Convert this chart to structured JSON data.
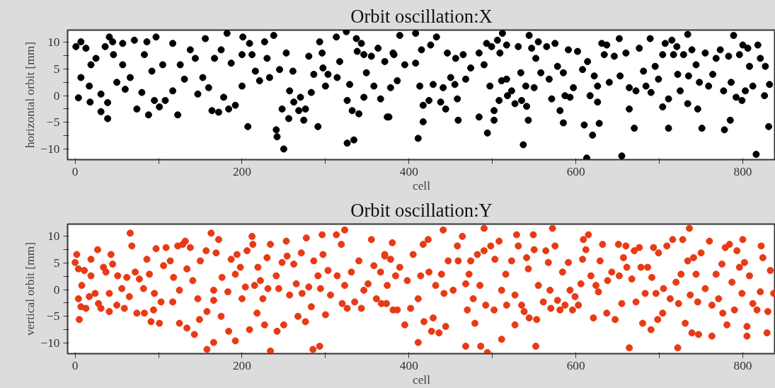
{
  "chart_data": [
    {
      "type": "scatter",
      "title": "Orbit oscillation:X",
      "xlabel": "cell",
      "ylabel": "horizontal orbit [mm]",
      "xlim": [
        -9,
        839
      ],
      "ylim": [
        -12,
        12.3
      ],
      "xticks": [
        0,
        {
          "value": 100,
          "label": null
        },
        200,
        {
          "value": 300,
          "label": null
        },
        400,
        {
          "value": 500,
          "label": null
        },
        600,
        {
          "value": 700,
          "label": null
        },
        800
      ],
      "yticks": [
        -10,
        {
          "value": -7.5,
          "label": null
        },
        -5,
        {
          "value": -2.5,
          "label": null
        },
        0,
        {
          "value": 2.5,
          "label": null
        },
        5,
        {
          "value": 7.5,
          "label": null
        },
        10
      ],
      "grid": false,
      "marker": "circle",
      "series": [
        {
          "color": "#000000",
          "x": [
            1,
            7,
            13,
            4,
            7,
            17,
            19,
            18,
            25,
            31,
            31,
            39,
            39,
            41,
            36,
            45,
            46,
            50,
            57,
            57,
            60,
            71,
            66,
            74,
            80,
            88,
            83,
            86,
            92,
            97,
            95,
            101,
            105,
            108,
            117,
            117,
            123,
            126,
            131,
            138,
            147,
            144,
            153,
            156,
            160,
            164,
            167,
            172,
            175,
            178,
            182,
            184,
            187,
            192,
            200,
            201,
            200,
            207,
            209,
            212,
            216,
            221,
            227,
            230,
            238,
            233,
            241,
            242,
            250,
            245,
            248,
            253,
            256,
            257,
            261,
            262,
            270,
            268,
            274,
            276,
            280,
            283,
            286,
            291,
            293,
            296,
            297,
            300,
            303,
            313,
            314,
            317,
            325,
            326,
            334,
            326,
            329,
            332,
            337,
            338,
            340,
            343,
            346,
            349,
            346,
            355,
            358,
            363,
            366,
            374,
            371,
            378,
            381,
            376,
            382,
            389,
            386,
            395,
            408,
            408,
            411,
            413,
            415,
            417,
            417,
            424,
            426,
            429,
            433,
            438,
            441,
            444,
            446,
            450,
            455,
            458,
            459,
            456,
            465,
            468,
            474,
            484,
            484,
            490,
            493,
            494,
            497,
            499,
            502,
            502,
            506,
            509,
            512,
            511,
            517,
            517,
            508,
            518,
            523,
            527,
            531,
            535,
            534,
            537,
            540,
            543,
            541,
            544,
            547,
            550,
            552,
            555,
            558,
            565,
            568,
            571,
            575,
            578,
            581,
            585,
            585,
            587,
            591,
            593,
            597,
            602,
            608,
            610,
            613,
            614,
            617,
            620,
            622,
            626,
            628,
            626,
            631,
            634,
            637,
            640,
            646,
            652,
            655,
            653,
            660,
            664,
            664,
            670,
            672,
            676,
            681,
            684,
            689,
            690,
            695,
            699,
            704,
            704,
            707,
            711,
            711,
            715,
            717,
            721,
            722,
            725,
            729,
            734,
            734,
            735,
            739,
            744,
            746,
            748,
            751,
            755,
            759,
            764,
            768,
            773,
            777,
            778,
            785,
            783,
            786,
            789,
            792,
            796,
            799,
            800,
            803,
            806,
            808,
            812,
            816,
            818,
            821,
            826,
            827,
            831,
            832
          ],
          "values": [
            9.2,
            10.1,
            8.9,
            -0.4,
            3.4,
            1.8,
            5.8,
            -1.2,
            7,
            -3,
            0.3,
            -4.3,
            -1.3,
            11,
            9.2,
            10.1,
            7.7,
            2.5,
            5.8,
            9.8,
            1.2,
            10.4,
            3.4,
            -2.5,
            0.6,
            -3.6,
            7.7,
            10.1,
            4.6,
            11,
            -0.9,
            -2.1,
            5.8,
            -0.9,
            9.8,
            0.9,
            -3.6,
            5.8,
            3.1,
            8.6,
            0.3,
            7,
            3.4,
            10.7,
            1.5,
            -2.8,
            7,
            -3.1,
            8.6,
            -0.3,
            11.7,
            -2.5,
            6.1,
            -1.8,
            7.7,
            11,
            1.8,
            -5.8,
            9.8,
            7.7,
            4.6,
            2.8,
            10.1,
            7,
            11.3,
            3.4,
            -6.4,
            -7.7,
            -10,
            4.9,
            -2.5,
            8,
            -4.3,
            0.9,
            4.6,
            -1.2,
            -0.3,
            -2.8,
            -4.6,
            -2.5,
            7.4,
            0.6,
            4,
            -5.8,
            10.1,
            8,
            5.2,
            1.8,
            4,
            11,
            3.4,
            6.4,
            12,
            -8.9,
            -8.3,
            -0.9,
            2.1,
            -2.8,
            10.7,
            8.3,
            -3.4,
            9.8,
            7.7,
            4.3,
            -0.3,
            7.4,
            1.8,
            8.9,
            -0.6,
            -4,
            6.4,
            1.5,
            8,
            -4,
            7.7,
            11.3,
            2.8,
            5.8,
            11.7,
            6.1,
            -8,
            1.8,
            8.6,
            -4.9,
            -1.8,
            -0.9,
            9.5,
            2.1,
            11,
            -1.2,
            1.5,
            -2.5,
            8,
            3.4,
            2.1,
            -0.6,
            -4.6,
            7,
            7.7,
            3.1,
            5.2,
            -4,
            8,
            5.8,
            9.8,
            -7,
            1.8,
            9.2,
            -4.6,
            -2.8,
            10.4,
            8,
            11.7,
            2.8,
            9.5,
            3.1,
            -0.9,
            0,
            0.9,
            -1.5,
            9.2,
            -0.9,
            4.3,
            -9.2,
            1.8,
            -4.6,
            -2,
            11.3,
            8.9,
            1.5,
            7,
            10.1,
            4.3,
            9.2,
            3.1,
            -0.6,
            9.8,
            5.5,
            -2.8,
            4.3,
            -5.1,
            0,
            8.6,
            -0.3,
            1.5,
            8.3,
            4.9,
            -5.5,
            -11.7,
            6.4,
            0,
            -7.4,
            3.7,
            -1.2,
            -5.2,
            1.8,
            9.8,
            7.7,
            9.5,
            2.5,
            7.4,
            10.7,
            -11.3,
            3.7,
            8,
            -2.5,
            1.5,
            -6.1,
            0.9,
            8.9,
            4.6,
            1.8,
            10.7,
            0.6,
            5.5,
            3.1,
            7.7,
            -2.1,
            9.8,
            -6.1,
            -0.6,
            10.4,
            7.7,
            9.2,
            4,
            0.9,
            7.7,
            11.5,
            -1.5,
            3.7,
            8.6,
            5.8,
            -2.5,
            2.5,
            -6.1,
            8,
            1.8,
            4,
            7,
            8.6,
            0.9,
            -6.4,
            -4.6,
            7.4,
            2.5,
            11.3,
            -0.3,
            7.7,
            -0.9,
            9.5,
            0.9,
            8.9,
            5.5,
            1.8,
            -11,
            9.5,
            7,
            0,
            5.5,
            -5.8,
            2.1
          ]
        }
      ]
    },
    {
      "type": "scatter",
      "title": "Orbit oscillation:Y",
      "xlabel": "cell",
      "ylabel": "vertical orbit [mm]",
      "xlim": [
        -9,
        839
      ],
      "ylim": [
        -12,
        12.3
      ],
      "xticks": [
        0,
        {
          "value": 100,
          "label": null
        },
        200,
        {
          "value": 300,
          "label": null
        },
        400,
        {
          "value": 500,
          "label": null
        },
        600,
        {
          "value": 700,
          "label": null
        },
        800
      ],
      "yticks": [
        -10,
        {
          "value": -7.5,
          "label": null
        },
        -5,
        {
          "value": -2.5,
          "label": null
        },
        0,
        {
          "value": 2.5,
          "label": null
        },
        5,
        {
          "value": 7.5,
          "label": null
        },
        10
      ],
      "grid": false,
      "marker": "circle",
      "series": [
        {
          "color": "#e83a14",
          "x": [
            2,
            0,
            4,
            5,
            4,
            7,
            8,
            11,
            13,
            17,
            19,
            19,
            24,
            27,
            28,
            31,
            34,
            37,
            41,
            41,
            43,
            45,
            50,
            51,
            56,
            59,
            62,
            65,
            66,
            68,
            72,
            74,
            77,
            82,
            83,
            86,
            89,
            91,
            94,
            95,
            97,
            101,
            103,
            106,
            109,
            114,
            117,
            118,
            125,
            125,
            123,
            129,
            134,
            132,
            134,
            138,
            143,
            141,
            147,
            149,
            150,
            157,
            158,
            158,
            163,
            166,
            166,
            166,
            169,
            172,
            175,
            176,
            183,
            184,
            187,
            192,
            192,
            194,
            198,
            200,
            204,
            206,
            209,
            212,
            213,
            215,
            219,
            218,
            222,
            225,
            227,
            230,
            231,
            234,
            234,
            241,
            242,
            244,
            248,
            250,
            253,
            254,
            257,
            262,
            265,
            267,
            271,
            272,
            276,
            277,
            280,
            283,
            285,
            286,
            291,
            293,
            294,
            296,
            297,
            300,
            303,
            306,
            313,
            314,
            319,
            320,
            323,
            323,
            326,
            331,
            335,
            340,
            343,
            346,
            351,
            355,
            358,
            361,
            366,
            367,
            371,
            374,
            378,
            381,
            371,
            373,
            380,
            384,
            386,
            389,
            395,
            398,
            402,
            405,
            411,
            411,
            414,
            417,
            418,
            423,
            424,
            427,
            429,
            432,
            436,
            439,
            441,
            442,
            444,
            447,
            453,
            458,
            459,
            464,
            468,
            468,
            470,
            472,
            474,
            477,
            479,
            482,
            485,
            486,
            490,
            490,
            492,
            494,
            498,
            502,
            503,
            508,
            511,
            511,
            516,
            517,
            523,
            527,
            527,
            529,
            531,
            535,
            538,
            541,
            543,
            544,
            549,
            550,
            552,
            553,
            555,
            561,
            564,
            567,
            569,
            570,
            572,
            575,
            578,
            581,
            584,
            587,
            591,
            593,
            596,
            599,
            603,
            606,
            608,
            609,
            612,
            615,
            618,
            621,
            624,
            627,
            629,
            632,
            637,
            638,
            643,
            647,
            651,
            652,
            655,
            657,
            660,
            661,
            664,
            667,
            670,
            672,
            676,
            678,
            680,
            683,
            686,
            690,
            691,
            693,
            696,
            698,
            699,
            704,
            705,
            709,
            713,
            716,
            720,
            722,
            723,
            726,
            728,
            731,
            734,
            736,
            737,
            739,
            741,
            744,
            746,
            747,
            750,
            755,
            760,
            763,
            763,
            768,
            771,
            775,
            776,
            779,
            781,
            784,
            787,
            790,
            793,
            796,
            799,
            800,
            802,
            805,
            805,
            808,
            812,
            817,
            821,
            822,
            824,
            829,
            830,
            833,
            837
          ],
          "values": [
            6.6,
            5.1,
            3.9,
            -5.6,
            -1.7,
            -3.2,
            0.8,
            3.6,
            -3.5,
            -1.3,
            5.7,
            2.6,
            -0.7,
            7.5,
            -2.6,
            -3.5,
            4.2,
            3.3,
            -4.1,
            -0.7,
            6.6,
            4.8,
            -2.9,
            2.6,
            0.2,
            -3.5,
            2.3,
            -1.3,
            10.6,
            8.2,
            3.3,
            -4.4,
            2,
            0.2,
            -4.4,
            5.7,
            2.9,
            -6,
            -3.8,
            -0.7,
            7.7,
            -6.3,
            -2.3,
            4.5,
            7.9,
            5.4,
            -2.3,
            2.3,
            -6.3,
            -0.1,
            8.2,
            8.5,
            -7.2,
            9.1,
            3.9,
            7.9,
            -8.4,
            1.7,
            -1.7,
            -5.6,
            5.4,
            7.3,
            -4.1,
            -11.2,
            10.6,
            -9.9,
            -2,
            -0.1,
            6.9,
            9.4,
            -5,
            2.3,
            -0.4,
            -7.8,
            5.7,
            -9.6,
            2.9,
            6.6,
            4.2,
            -1.7,
            0.5,
            7.3,
            -7.5,
            10,
            8.5,
            0.8,
            4.2,
            -4.4,
            1.7,
            -1.7,
            -6.6,
            6,
            0.2,
            8.5,
            -11.5,
            2.6,
            -7.8,
            0.2,
            5.1,
            -6.6,
            9.1,
            6.3,
            -1,
            4.8,
            1.1,
            -5,
            6.9,
            -0.7,
            -6,
            9.7,
            0.5,
            -3.2,
            -11.2,
            5.4,
            2.6,
            -10.6,
            0.2,
            10.3,
            6.6,
            -4.7,
            3.6,
            -1,
            10.3,
            2.6,
            8.5,
            -2.6,
            11.2,
            0.8,
            -3.5,
            3.3,
            -2.3,
            5.4,
            -3.5,
            -0.1,
            1.1,
            9.4,
            4.5,
            -1.7,
            3.3,
            -2.6,
            6.6,
            0.8,
            5.7,
            -3.8,
            6.3,
            -2.6,
            8.8,
            2.6,
            -3.8,
            4.2,
            -6.6,
            1.7,
            -3.5,
            6.6,
            -9.9,
            -1.7,
            2.6,
            8.5,
            -6,
            9.4,
            3.3,
            -7.8,
            -5.3,
            0.8,
            -8.1,
            2.9,
            11.2,
            -0.7,
            -6.9,
            5.4,
            -0.1,
            8.2,
            5.4,
            10,
            -10.6,
            1.1,
            -3.8,
            2.9,
            5.4,
            -1.7,
            -6.3,
            6.6,
            0.8,
            -10.6,
            7.3,
            11.5,
            -2.9,
            -11.8,
            8.2,
            -3.8,
            5.7,
            9.1,
            -9.3,
            -0.1,
            2.9,
            -2.9,
            5.4,
            -1,
            -6.6,
            10.3,
            8.2,
            -2.9,
            -4.1,
            6,
            3.9,
            -5.3,
            10.3,
            7.5,
            -10.6,
            -5.6,
            0.8,
            -2.3,
            7.3,
            5.1,
            -0.1,
            -3.5,
            11.5,
            8.2,
            -2,
            -3.8,
            3.3,
            -2.9,
            5.1,
            -0.1,
            -3.8,
            -1.3,
            -2.9,
            1.1,
            5.7,
            9.4,
            7.5,
            10.3,
            2.6,
            -5.3,
            0.8,
            -0.4,
            5.4,
            8.5,
            -4.4,
            1.7,
            3.3,
            -5.6,
            8.5,
            2.6,
            -2.6,
            6,
            8.2,
            4.2,
            -10.9,
            2,
            7.3,
            -2.3,
            7.9,
            4.2,
            -6.3,
            -0.7,
            4.2,
            -7.5,
            2.3,
            7.9,
            -0.7,
            -5.6,
            6.9,
            -4.4,
            0.2,
            8.2,
            -1.7,
            9.4,
            1.4,
            -10.9,
            -2.6,
            2.9,
            9.4,
            -6.3,
            5.4,
            11.5,
            -1,
            -8.1,
            6,
            2.9,
            -2.3,
            -8.4,
            6.9,
            0.2,
            9.1,
            -2.9,
            -8.7,
            2.9,
            -1.7,
            4.8,
            -4.4,
            7.9,
            -6.6,
            8.5,
            1.4,
            -3.8,
            7.3,
            4.2,
            -0.7,
            9.4,
            5.1,
            -8.7,
            -6.9,
            2.6,
            -2.6,
            -3.8,
            -0.4,
            8.2,
            6,
            -8.1,
            -4.1,
            3.6,
            -0.7
          ]
        }
      ]
    }
  ]
}
